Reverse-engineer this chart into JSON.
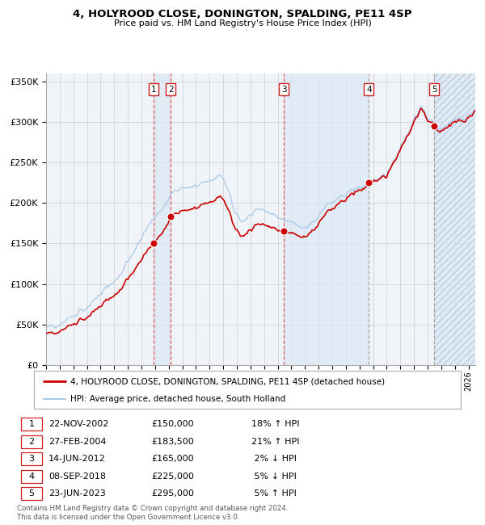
{
  "title": "4, HOLYROOD CLOSE, DONINGTON, SPALDING, PE11 4SP",
  "subtitle": "Price paid vs. HM Land Registry's House Price Index (HPI)",
  "ylabel_ticks": [
    "£0",
    "£50K",
    "£100K",
    "£150K",
    "£200K",
    "£250K",
    "£300K",
    "£350K"
  ],
  "ytick_values": [
    0,
    50000,
    100000,
    150000,
    200000,
    250000,
    300000,
    350000
  ],
  "ylim": [
    0,
    360000
  ],
  "xlim_start": 1995.0,
  "xlim_end": 2026.5,
  "sale_events": [
    {
      "num": 1,
      "date": "22-NOV-2002",
      "year": 2002.89,
      "price": 150000,
      "hpi_rel": "18% ↑ HPI"
    },
    {
      "num": 2,
      "date": "27-FEB-2004",
      "year": 2004.16,
      "price": 183500,
      "hpi_rel": "21% ↑ HPI"
    },
    {
      "num": 3,
      "date": "14-JUN-2012",
      "year": 2012.45,
      "price": 165000,
      "hpi_rel": "2% ↓ HPI"
    },
    {
      "num": 4,
      "date": "08-SEP-2018",
      "year": 2018.69,
      "price": 225000,
      "hpi_rel": "5% ↓ HPI"
    },
    {
      "num": 5,
      "date": "23-JUN-2023",
      "year": 2023.48,
      "price": 295000,
      "hpi_rel": "5% ↑ HPI"
    }
  ],
  "legend_line1": "4, HOLYROOD CLOSE, DONINGTON, SPALDING, PE11 4SP (detached house)",
  "legend_line2": "HPI: Average price, detached house, South Holland",
  "footnote_line1": "Contains HM Land Registry data © Crown copyright and database right 2024.",
  "footnote_line2": "This data is licensed under the Open Government Licence v3.0.",
  "hpi_color": "#a8c8e8",
  "sale_color": "#cc0000",
  "dot_color": "#cc0000",
  "vline_color_red": "#dd4444",
  "vline_color_gray": "#999999",
  "shade_color": "#dce8f5",
  "grid_color": "#cccccc",
  "bg_color": "#f0f4f8",
  "table_rows": [
    [
      "1",
      "22-NOV-2002",
      "£150,000",
      "18% ↑ HPI"
    ],
    [
      "2",
      "27-FEB-2004",
      "£183,500",
      "21% ↑ HPI"
    ],
    [
      "3",
      "14-JUN-2012",
      "£165,000",
      " 2% ↓ HPI"
    ],
    [
      "4",
      "08-SEP-2018",
      "£225,000",
      " 5% ↓ HPI"
    ],
    [
      "5",
      "23-JUN-2023",
      "£295,000",
      " 5% ↑ HPI"
    ]
  ]
}
